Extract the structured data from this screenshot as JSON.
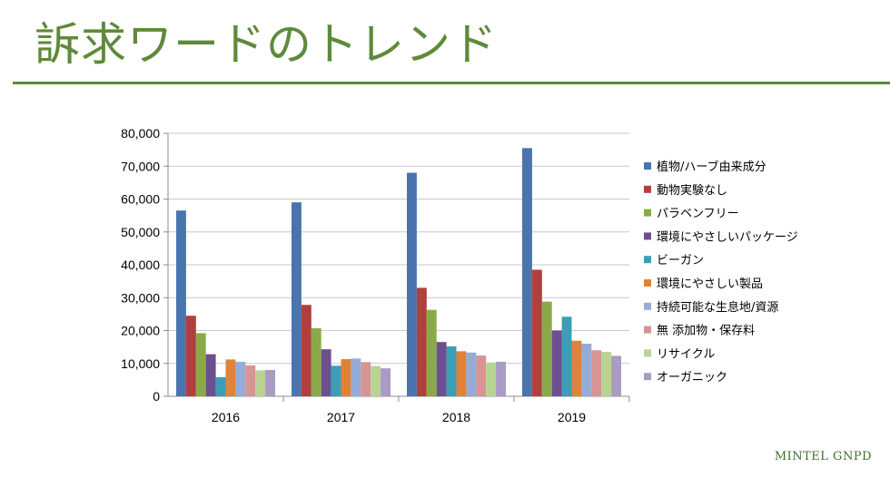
{
  "slide": {
    "title": "訴求ワードのトレンド",
    "brand": "MINTEL GNPD"
  },
  "chart_data": {
    "type": "bar",
    "categories": [
      "2016",
      "2017",
      "2018",
      "2019"
    ],
    "ylim": [
      0,
      80000
    ],
    "yticks": [
      "0",
      "10,000",
      "20,000",
      "30,000",
      "40,000",
      "50,000",
      "60,000",
      "70,000",
      "80,000"
    ],
    "grid": true,
    "legend_position": "right",
    "series": [
      {
        "name": "植物/ハーブ由来成分",
        "color": "#4a74ad",
        "values": [
          56500,
          59000,
          68000,
          75500
        ]
      },
      {
        "name": "動物実験なし",
        "color": "#b0403d",
        "values": [
          24500,
          27800,
          33000,
          38500
        ]
      },
      {
        "name": "パラベンフリー",
        "color": "#8aaa49",
        "values": [
          19200,
          20700,
          26300,
          28800
        ]
      },
      {
        "name": "環境にやさしいパッケージ",
        "color": "#6c4f8f",
        "values": [
          12800,
          14300,
          16500,
          20000
        ]
      },
      {
        "name": "ビーガン",
        "color": "#3c9eb6",
        "values": [
          5800,
          9300,
          15200,
          24200
        ]
      },
      {
        "name": "環境にやさしい製品",
        "color": "#e0833a",
        "values": [
          11200,
          11300,
          13700,
          16900
        ]
      },
      {
        "name": "持続可能な生息地/資源",
        "color": "#95acd6",
        "values": [
          10500,
          11500,
          13300,
          16000
        ]
      },
      {
        "name": "無 添加物・保存料",
        "color": "#d69493",
        "values": [
          9400,
          10400,
          12400,
          14000
        ]
      },
      {
        "name": "リサイクル",
        "color": "#b8d392",
        "values": [
          7900,
          9200,
          10300,
          13500
        ]
      },
      {
        "name": "オーガニック",
        "color": "#a99bc4",
        "values": [
          8000,
          8500,
          10500,
          12300
        ]
      }
    ]
  }
}
